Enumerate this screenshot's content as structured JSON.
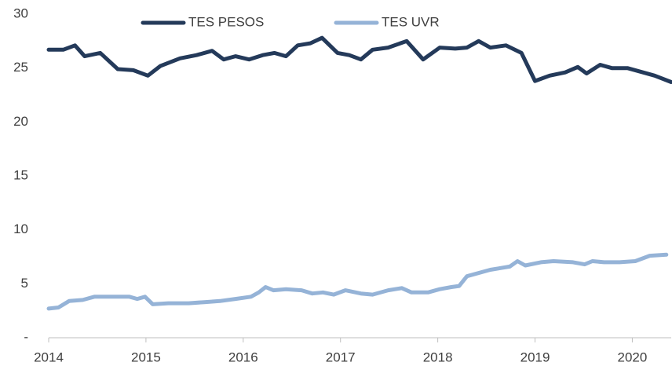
{
  "chart_data": {
    "type": "line",
    "xlim": [
      2014,
      2020.4
    ],
    "xticks": [
      2014,
      2015,
      2016,
      2017,
      2018,
      2019,
      2020
    ],
    "ylim": [
      0,
      30
    ],
    "yticks": [
      {
        "value": 0,
        "label": "-"
      },
      5,
      10,
      15,
      20,
      25,
      30
    ],
    "legend": "top",
    "series": [
      {
        "name": "TES PESOS",
        "color": "#243a5a",
        "x": [
          2014.0,
          2014.15,
          2014.27,
          2014.37,
          2014.53,
          2014.71,
          2014.87,
          2015.02,
          2015.15,
          2015.35,
          2015.52,
          2015.68,
          2015.8,
          2015.92,
          2016.06,
          2016.2,
          2016.32,
          2016.44,
          2016.56,
          2016.69,
          2016.81,
          2016.97,
          2017.09,
          2017.21,
          2017.33,
          2017.49,
          2017.68,
          2017.85,
          2018.02,
          2018.18,
          2018.3,
          2018.42,
          2018.54,
          2018.7,
          2018.86,
          2019.0,
          2019.15,
          2019.31,
          2019.44,
          2019.53,
          2019.67,
          2019.79,
          2019.95,
          2020.11,
          2020.23,
          2020.4
        ],
        "values": [
          26.7,
          26.7,
          27.1,
          26.1,
          26.4,
          24.9,
          24.8,
          24.3,
          25.2,
          25.9,
          26.2,
          26.6,
          25.8,
          26.1,
          25.8,
          26.2,
          26.4,
          26.1,
          27.1,
          27.3,
          27.8,
          26.4,
          26.2,
          25.8,
          26.7,
          26.9,
          27.5,
          25.8,
          26.9,
          26.8,
          26.9,
          27.5,
          26.9,
          27.1,
          26.4,
          23.8,
          24.3,
          24.6,
          25.1,
          24.5,
          25.3,
          25.0,
          25.0,
          24.6,
          24.3,
          23.7
        ]
      },
      {
        "name": "TES UVR",
        "color": "#95b3d7",
        "x": [
          2014.0,
          2014.1,
          2014.21,
          2014.35,
          2014.47,
          2014.71,
          2014.83,
          2014.91,
          2014.99,
          2015.07,
          2015.23,
          2015.44,
          2015.6,
          2015.76,
          2015.92,
          2016.08,
          2016.16,
          2016.23,
          2016.31,
          2016.44,
          2016.6,
          2016.71,
          2016.82,
          2016.93,
          2017.05,
          2017.21,
          2017.33,
          2017.49,
          2017.63,
          2017.73,
          2017.9,
          2018.02,
          2018.14,
          2018.22,
          2018.3,
          2018.54,
          2018.74,
          2018.82,
          2018.9,
          2019.06,
          2019.19,
          2019.39,
          2019.51,
          2019.59,
          2019.71,
          2019.87,
          2020.03,
          2020.18,
          2020.35
        ],
        "values": [
          2.7,
          2.8,
          3.4,
          3.5,
          3.8,
          3.8,
          3.8,
          3.6,
          3.8,
          3.1,
          3.2,
          3.2,
          3.3,
          3.4,
          3.6,
          3.8,
          4.2,
          4.7,
          4.4,
          4.5,
          4.4,
          4.1,
          4.2,
          4.0,
          4.4,
          4.1,
          4.0,
          4.4,
          4.6,
          4.2,
          4.2,
          4.5,
          4.7,
          4.8,
          5.7,
          6.3,
          6.6,
          7.1,
          6.7,
          7.0,
          7.1,
          7.0,
          6.8,
          7.1,
          7.0,
          7.0,
          7.1,
          7.6,
          7.7
        ]
      }
    ]
  }
}
